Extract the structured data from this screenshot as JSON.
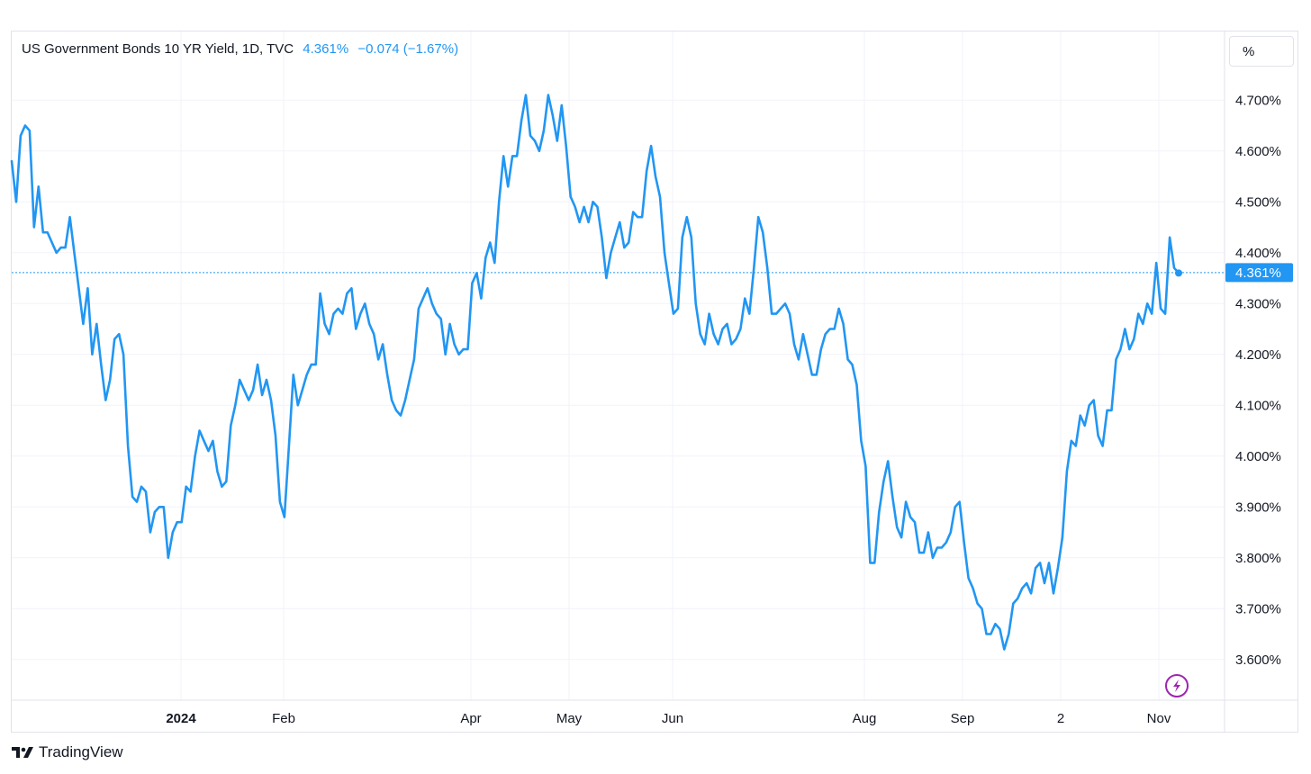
{
  "header": {
    "symbol": "US Government Bonds 10 YR Yield, 1D, TVC",
    "last": "4.361%",
    "change": "−0.074 (−1.67%)"
  },
  "unit_label": "%",
  "last_price_tag": "4.361%",
  "brand": {
    "name": "TradingView",
    "logo_icon": "tradingview-logo-icon"
  },
  "flash_icon": "lightning-icon",
  "colors": {
    "line": "#2196f3",
    "grid": "#f0f3fa",
    "tag_bg": "#2196f3",
    "flash": "#9c27b0"
  },
  "chart_data": {
    "type": "line",
    "title": "US Government Bonds 10 YR Yield, 1D, TVC",
    "ylabel": "%",
    "ylim": [
      3.52,
      4.835
    ],
    "yticks": [
      "4.700%",
      "4.600%",
      "4.500%",
      "4.400%",
      "4.300%",
      "4.200%",
      "4.100%",
      "4.000%",
      "3.900%",
      "3.800%",
      "3.700%",
      "3.600%"
    ],
    "ytick_values": [
      4.7,
      4.6,
      4.5,
      4.4,
      4.3,
      4.2,
      4.1,
      4.0,
      3.9,
      3.8,
      3.7,
      3.6
    ],
    "xticks": [
      {
        "label": "2024",
        "bold": true
      },
      {
        "label": "Feb",
        "bold": false
      },
      {
        "label": "Apr",
        "bold": false
      },
      {
        "label": "May",
        "bold": false
      },
      {
        "label": "Jun",
        "bold": false
      },
      {
        "label": "Aug",
        "bold": false
      },
      {
        "label": "Sep",
        "bold": false
      },
      {
        "label": "2",
        "bold": false
      },
      {
        "label": "Nov",
        "bold": false
      }
    ],
    "last_value": 4.361,
    "grid": true,
    "series": [
      {
        "values": [
          4.58,
          4.5,
          4.63,
          4.65,
          4.64,
          4.45,
          4.53,
          4.44,
          4.44,
          4.42,
          4.4,
          4.41,
          4.41,
          4.47,
          4.4,
          4.33,
          4.26,
          4.33,
          4.2,
          4.26,
          4.18,
          4.11,
          4.15,
          4.23,
          4.24,
          4.2,
          4.02,
          3.92,
          3.91,
          3.94,
          3.93,
          3.85,
          3.89,
          3.9,
          3.9,
          3.8,
          3.85,
          3.87,
          3.87,
          3.94,
          3.93,
          4.0,
          4.05,
          4.03,
          4.01,
          4.03,
          3.97,
          3.94,
          3.95,
          4.06,
          4.1,
          4.15,
          4.13,
          4.11,
          4.13,
          4.18,
          4.12,
          4.15,
          4.11,
          4.04,
          3.91,
          3.88,
          4.02,
          4.16,
          4.1,
          4.13,
          4.16,
          4.18,
          4.18,
          4.32,
          4.26,
          4.24,
          4.28,
          4.29,
          4.28,
          4.32,
          4.33,
          4.25,
          4.28,
          4.3,
          4.26,
          4.24,
          4.19,
          4.22,
          4.16,
          4.11,
          4.09,
          4.08,
          4.11,
          4.15,
          4.19,
          4.29,
          4.31,
          4.33,
          4.3,
          4.28,
          4.27,
          4.2,
          4.26,
          4.22,
          4.2,
          4.21,
          4.21,
          4.34,
          4.36,
          4.31,
          4.39,
          4.42,
          4.38,
          4.5,
          4.59,
          4.53,
          4.59,
          4.59,
          4.66,
          4.71,
          4.63,
          4.62,
          4.6,
          4.64,
          4.71,
          4.67,
          4.62,
          4.69,
          4.61,
          4.51,
          4.49,
          4.46,
          4.49,
          4.46,
          4.5,
          4.49,
          4.43,
          4.35,
          4.4,
          4.43,
          4.46,
          4.41,
          4.42,
          4.48,
          4.47,
          4.47,
          4.56,
          4.61,
          4.55,
          4.51,
          4.4,
          4.34,
          4.28,
          4.29,
          4.43,
          4.47,
          4.43,
          4.3,
          4.24,
          4.22,
          4.28,
          4.24,
          4.22,
          4.25,
          4.26,
          4.22,
          4.23,
          4.25,
          4.31,
          4.28,
          4.37,
          4.47,
          4.44,
          4.37,
          4.28,
          4.28,
          4.29,
          4.3,
          4.28,
          4.22,
          4.19,
          4.24,
          4.2,
          4.16,
          4.16,
          4.21,
          4.24,
          4.25,
          4.25,
          4.29,
          4.26,
          4.19,
          4.18,
          4.14,
          4.03,
          3.98,
          3.79,
          3.79,
          3.89,
          3.95,
          3.99,
          3.92,
          3.86,
          3.84,
          3.91,
          3.88,
          3.87,
          3.81,
          3.81,
          3.85,
          3.8,
          3.82,
          3.82,
          3.83,
          3.85,
          3.9,
          3.91,
          3.83,
          3.76,
          3.74,
          3.71,
          3.7,
          3.65,
          3.65,
          3.67,
          3.66,
          3.62,
          3.65,
          3.71,
          3.72,
          3.74,
          3.75,
          3.73,
          3.78,
          3.79,
          3.75,
          3.79,
          3.73,
          3.78,
          3.84,
          3.97,
          4.03,
          4.02,
          4.08,
          4.06,
          4.1,
          4.11,
          4.04,
          4.02,
          4.09,
          4.09,
          4.19,
          4.21,
          4.25,
          4.21,
          4.23,
          4.28,
          4.26,
          4.3,
          4.28,
          4.38,
          4.29,
          4.28,
          4.43,
          4.37,
          4.36
        ]
      }
    ]
  }
}
